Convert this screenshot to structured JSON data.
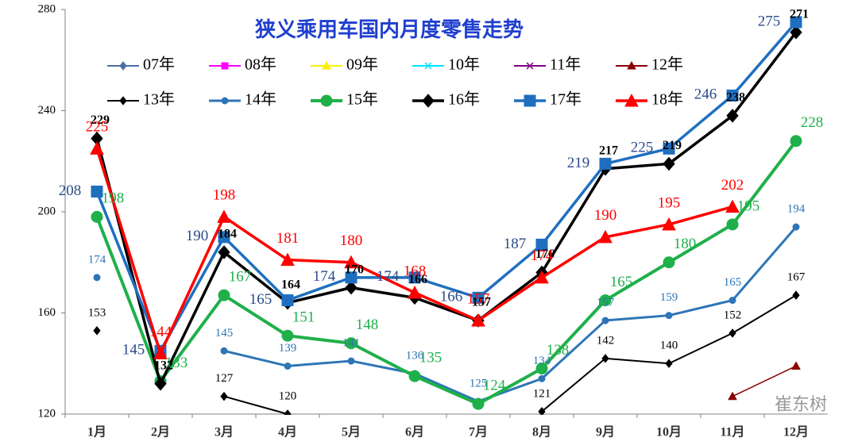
{
  "chart_data": {
    "type": "line",
    "title": "狭义乘用车国内月度零售走势",
    "watermark": "崔东树",
    "categories": [
      "1月",
      "2月",
      "3月",
      "4月",
      "5月",
      "6月",
      "7月",
      "8月",
      "9月",
      "10月",
      "11月",
      "12月"
    ],
    "ylim": [
      120,
      280
    ],
    "yticks": [
      120,
      160,
      200,
      240,
      280
    ],
    "series": [
      {
        "name": "07年",
        "color": "#4a6fa5",
        "marker": "diamond",
        "values": [
          null,
          null,
          null,
          null,
          null,
          null,
          null,
          null,
          null,
          null,
          null,
          null
        ]
      },
      {
        "name": "08年",
        "color": "#ff00ff",
        "marker": "square",
        "values": [
          null,
          null,
          null,
          null,
          null,
          null,
          null,
          null,
          null,
          null,
          null,
          null
        ]
      },
      {
        "name": "09年",
        "color": "#ffee00",
        "marker": "triangle",
        "values": [
          null,
          null,
          null,
          null,
          null,
          null,
          null,
          null,
          null,
          null,
          null,
          null
        ]
      },
      {
        "name": "10年",
        "color": "#00e5ff",
        "marker": "cross",
        "values": [
          null,
          null,
          null,
          null,
          null,
          null,
          null,
          null,
          null,
          null,
          null,
          null
        ]
      },
      {
        "name": "11年",
        "color": "#800080",
        "marker": "cross",
        "values": [
          null,
          null,
          null,
          null,
          null,
          null,
          null,
          null,
          null,
          null,
          null,
          null
        ]
      },
      {
        "name": "12年",
        "color": "#8b0000",
        "marker": "triangle",
        "values": [
          null,
          null,
          null,
          null,
          null,
          null,
          null,
          null,
          null,
          null,
          127,
          139
        ]
      },
      {
        "name": "13年",
        "color": "#000000",
        "marker": "diamond",
        "values": [
          153,
          null,
          127,
          120,
          null,
          null,
          null,
          121,
          142,
          140,
          152,
          167
        ]
      },
      {
        "name": "14年",
        "color": "#2e75b6",
        "marker": "circle",
        "values": [
          174,
          null,
          145,
          139,
          141,
          136,
          125,
          134,
          157,
          159,
          165,
          194
        ]
      },
      {
        "name": "15年",
        "color": "#1fb04a",
        "marker": "bigcircle",
        "values": [
          198,
          133,
          167,
          151,
          148,
          135,
          124,
          138,
          165,
          180,
          195,
          228
        ]
      },
      {
        "name": "16年",
        "color": "#000000",
        "marker": "bigdiamond",
        "values": [
          229,
          132,
          184,
          164,
          170,
          166,
          157,
          176,
          217,
          219,
          238,
          271
        ]
      },
      {
        "name": "17年",
        "color": "#1f6fc0",
        "marker": "bigsquare",
        "values": [
          208,
          145,
          190,
          165,
          174,
          174,
          166,
          187,
          219,
          225,
          246,
          275
        ]
      },
      {
        "name": "18年",
        "color": "#ff0000",
        "marker": "bigtriangle",
        "values": [
          225,
          144,
          198,
          181,
          180,
          168,
          157,
          174,
          190,
          195,
          202,
          null
        ]
      }
    ]
  }
}
